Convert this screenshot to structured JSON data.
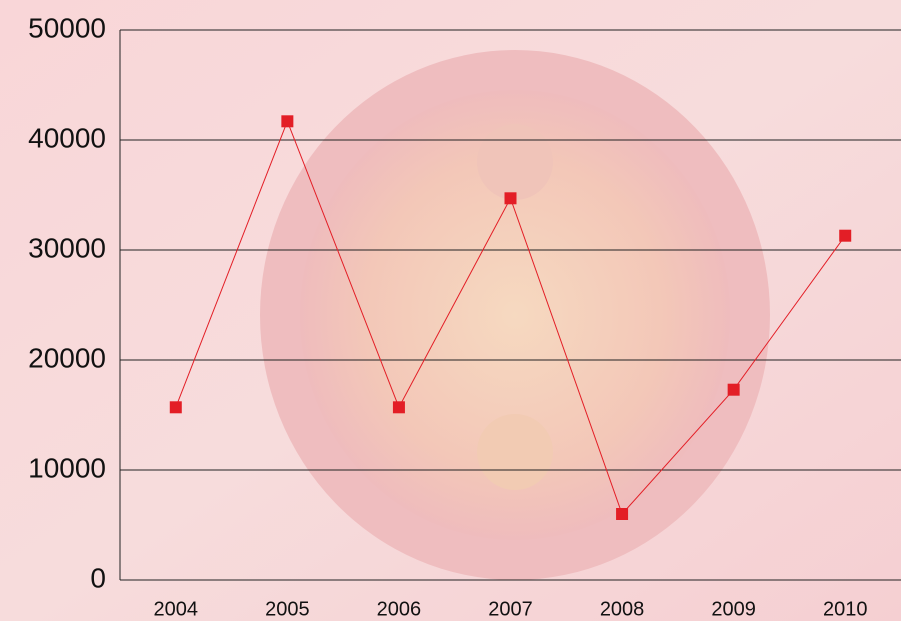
{
  "chart_data": {
    "type": "line",
    "categories": [
      "2004",
      "2005",
      "2006",
      "2007",
      "2008",
      "2009",
      "2010"
    ],
    "values": [
      15700,
      41700,
      15700,
      34700,
      6000,
      17300,
      31300
    ],
    "color": "#e31e26",
    "ylim": [
      0,
      50000
    ],
    "yticks": [
      0,
      10000,
      20000,
      30000,
      40000,
      50000
    ],
    "grid": true
  }
}
